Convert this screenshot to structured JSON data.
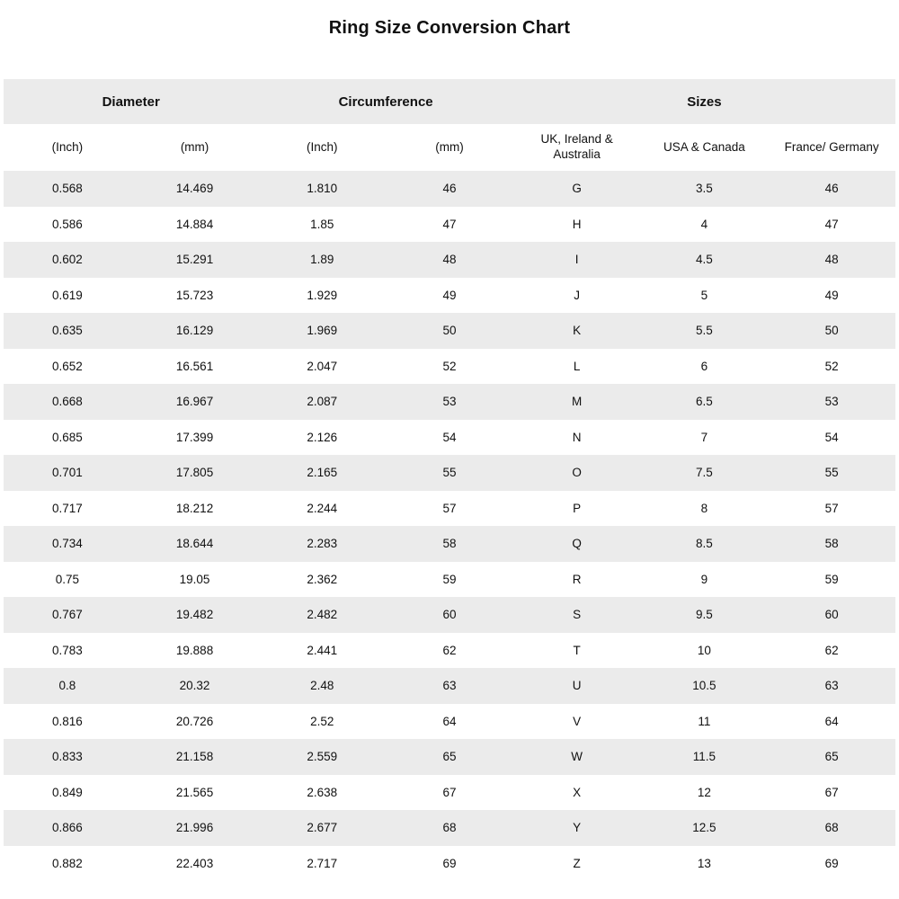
{
  "page_title": "Ring Size Conversion Chart",
  "colors": {
    "background": "#ffffff",
    "stripe": "#ebebeb",
    "text": "#111111"
  },
  "chart_data": {
    "type": "table",
    "title": "Ring Size Conversion Chart",
    "group_headers": [
      {
        "label": "Diameter",
        "colspan": 2
      },
      {
        "label": "Circumference",
        "colspan": 2
      },
      {
        "label": "Sizes",
        "colspan": 3
      }
    ],
    "columns": [
      "(Inch)",
      "(mm)",
      "(Inch)",
      "(mm)",
      "UK, Ireland & Australia",
      "USA & Canada",
      "France/ Germany"
    ],
    "rows": [
      [
        "0.568",
        "14.469",
        "1.810",
        "46",
        "G",
        "3.5",
        "46"
      ],
      [
        "0.586",
        "14.884",
        "1.85",
        "47",
        "H",
        "4",
        "47"
      ],
      [
        "0.602",
        "15.291",
        "1.89",
        "48",
        "I",
        "4.5",
        "48"
      ],
      [
        "0.619",
        "15.723",
        "1.929",
        "49",
        "J",
        "5",
        "49"
      ],
      [
        "0.635",
        "16.129",
        "1.969",
        "50",
        "K",
        "5.5",
        "50"
      ],
      [
        "0.652",
        "16.561",
        "2.047",
        "52",
        "L",
        "6",
        "52"
      ],
      [
        "0.668",
        "16.967",
        "2.087",
        "53",
        "M",
        "6.5",
        "53"
      ],
      [
        "0.685",
        "17.399",
        "2.126",
        "54",
        "N",
        "7",
        "54"
      ],
      [
        "0.701",
        "17.805",
        "2.165",
        "55",
        "O",
        "7.5",
        "55"
      ],
      [
        "0.717",
        "18.212",
        "2.244",
        "57",
        "P",
        "8",
        "57"
      ],
      [
        "0.734",
        "18.644",
        "2.283",
        "58",
        "Q",
        "8.5",
        "58"
      ],
      [
        "0.75",
        "19.05",
        "2.362",
        "59",
        "R",
        "9",
        "59"
      ],
      [
        "0.767",
        "19.482",
        "2.482",
        "60",
        "S",
        "9.5",
        "60"
      ],
      [
        "0.783",
        "19.888",
        "2.441",
        "62",
        "T",
        "10",
        "62"
      ],
      [
        "0.8",
        "20.32",
        "2.48",
        "63",
        "U",
        "10.5",
        "63"
      ],
      [
        "0.816",
        "20.726",
        "2.52",
        "64",
        "V",
        "11",
        "64"
      ],
      [
        "0.833",
        "21.158",
        "2.559",
        "65",
        "W",
        "11.5",
        "65"
      ],
      [
        "0.849",
        "21.565",
        "2.638",
        "67",
        "X",
        "12",
        "67"
      ],
      [
        "0.866",
        "21.996",
        "2.677",
        "68",
        "Y",
        "12.5",
        "68"
      ],
      [
        "0.882",
        "22.403",
        "2.717",
        "69",
        "Z",
        "13",
        "69"
      ]
    ],
    "layout": {
      "striped": true,
      "first_data_row_shaded": true,
      "grid": false
    }
  }
}
